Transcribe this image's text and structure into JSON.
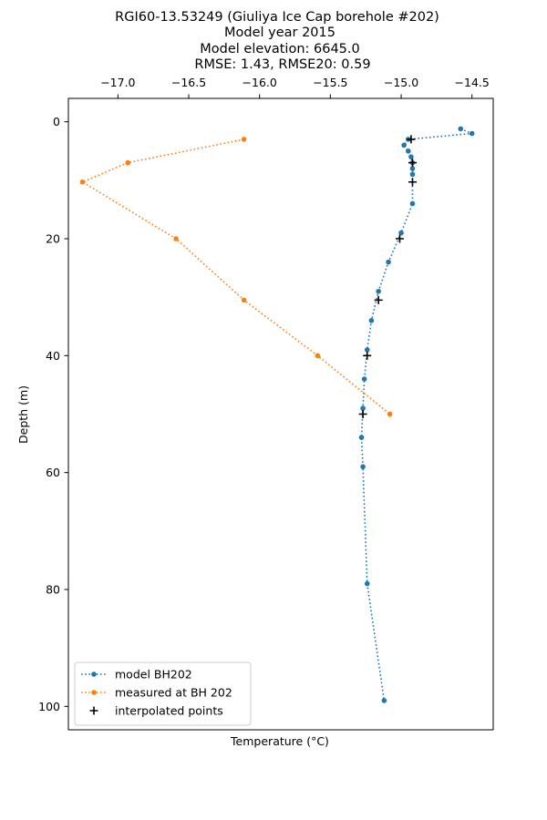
{
  "chart_data": {
    "type": "line",
    "title_lines": [
      "RGI60-13.53249 (Giuliya Ice Cap borehole #202)",
      "Model year 2015",
      "Model elevation: 6645.0",
      "RMSE: 1.43, RMSE20: 0.59"
    ],
    "xlabel": "Temperature (°C)",
    "ylabel": "Depth (m)",
    "x_axis_position": "top",
    "y_inverted": true,
    "xlim": [
      -17.35,
      -14.35
    ],
    "ylim": [
      104,
      -4
    ],
    "x_ticks": [
      -17.0,
      -16.5,
      -16.0,
      -15.5,
      -15.0,
      -14.5
    ],
    "x_tick_labels": [
      "−17.0",
      "−16.5",
      "−16.0",
      "−15.5",
      "−15.0",
      "−14.5"
    ],
    "y_ticks": [
      0,
      20,
      40,
      60,
      80,
      100
    ],
    "y_tick_labels": [
      "0",
      "20",
      "40",
      "60",
      "80",
      "100"
    ],
    "grid": false,
    "legend_position": "bottom-left",
    "series": [
      {
        "name": "model BH202",
        "color": "#1f77b4",
        "style": "dotted-line-with-dots",
        "points": [
          {
            "x": -14.58,
            "y": 1.2
          },
          {
            "x": -14.5,
            "y": 2.0
          },
          {
            "x": -14.95,
            "y": 3.0
          },
          {
            "x": -14.98,
            "y": 4.0
          },
          {
            "x": -14.95,
            "y": 5.0
          },
          {
            "x": -14.93,
            "y": 6.0
          },
          {
            "x": -14.92,
            "y": 7.0
          },
          {
            "x": -14.92,
            "y": 8.0
          },
          {
            "x": -14.92,
            "y": 9.0
          },
          {
            "x": -14.92,
            "y": 14.0
          },
          {
            "x": -15.0,
            "y": 19.0
          },
          {
            "x": -15.09,
            "y": 24.0
          },
          {
            "x": -15.16,
            "y": 29.0
          },
          {
            "x": -15.21,
            "y": 34.0
          },
          {
            "x": -15.24,
            "y": 39.0
          },
          {
            "x": -15.26,
            "y": 44.0
          },
          {
            "x": -15.27,
            "y": 49.0
          },
          {
            "x": -15.28,
            "y": 54.0
          },
          {
            "x": -15.27,
            "y": 59.0
          },
          {
            "x": -15.24,
            "y": 79.0
          },
          {
            "x": -15.12,
            "y": 99.0
          }
        ]
      },
      {
        "name": "measured at BH 202",
        "color": "#ff7f0e",
        "style": "dotted-line-with-dots",
        "points": [
          {
            "x": -16.11,
            "y": 3.0
          },
          {
            "x": -16.93,
            "y": 7.0
          },
          {
            "x": -17.25,
            "y": 10.3
          },
          {
            "x": -16.59,
            "y": 20.0
          },
          {
            "x": -16.11,
            "y": 30.5
          },
          {
            "x": -15.59,
            "y": 40.0
          },
          {
            "x": -15.08,
            "y": 50.0
          }
        ]
      },
      {
        "name": "interpolated points",
        "color": "#000000",
        "style": "plus-markers",
        "points": [
          {
            "x": -14.93,
            "y": 3.0
          },
          {
            "x": -14.92,
            "y": 7.0
          },
          {
            "x": -14.92,
            "y": 10.3
          },
          {
            "x": -15.01,
            "y": 20.0
          },
          {
            "x": -15.16,
            "y": 30.5
          },
          {
            "x": -15.24,
            "y": 40.0
          },
          {
            "x": -15.27,
            "y": 50.0
          }
        ]
      }
    ]
  }
}
